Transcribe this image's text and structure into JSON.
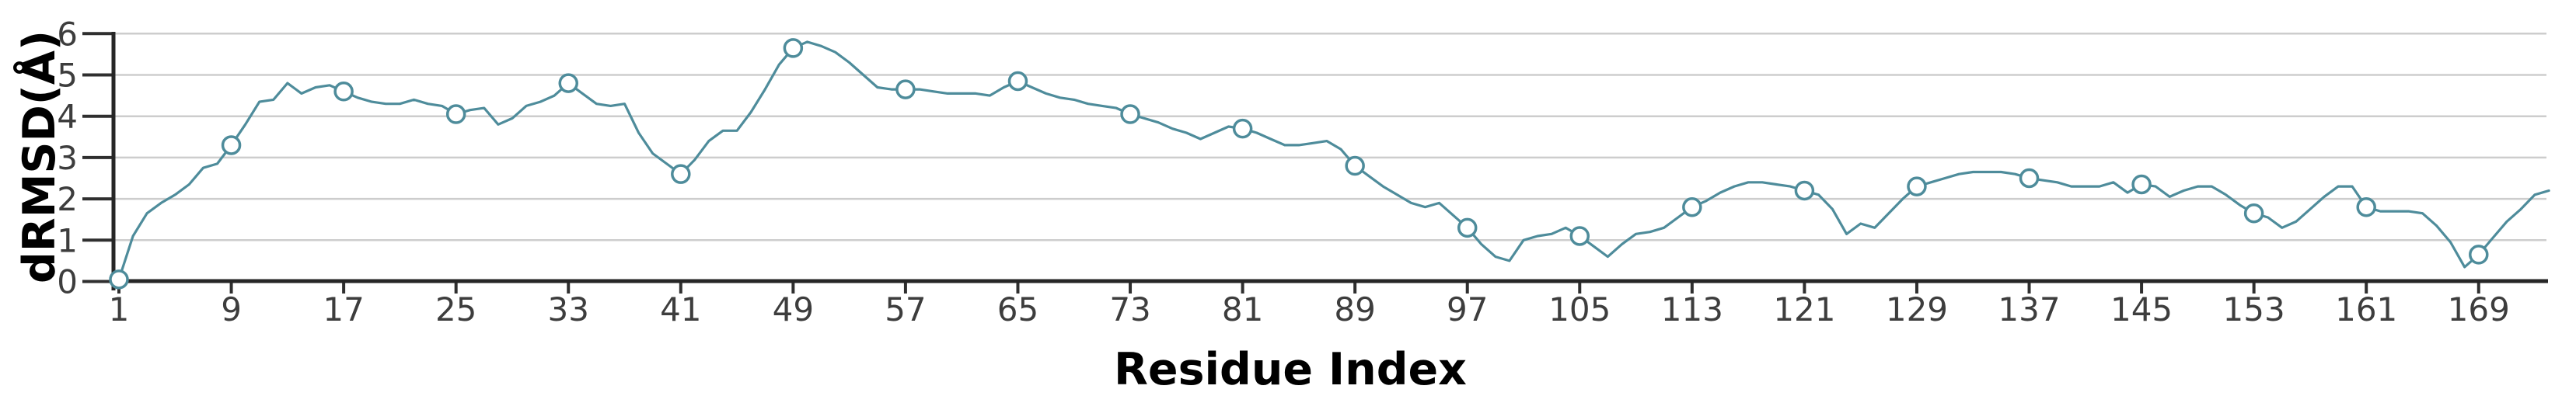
{
  "chart_data": {
    "type": "line",
    "title": "",
    "xlabel": "Residue Index",
    "ylabel": "dRMSD(Å)",
    "x_start": 1,
    "x_step": 1,
    "x_end": 174,
    "ylim": [
      0,
      6
    ],
    "yticks": [
      0,
      1,
      2,
      3,
      4,
      5,
      6
    ],
    "xticks": [
      1,
      9,
      17,
      25,
      33,
      41,
      49,
      57,
      65,
      73,
      81,
      89,
      97,
      105,
      113,
      121,
      129,
      137,
      145,
      153,
      161,
      169
    ],
    "marker_x": [
      1,
      9,
      17,
      25,
      33,
      41,
      49,
      57,
      65,
      73,
      81,
      89,
      97,
      105,
      113,
      121,
      129,
      137,
      145,
      153,
      161,
      169
    ],
    "grid": "horizontal",
    "legend": "none",
    "series": [
      {
        "name": "dRMSD",
        "values": [
          0.05,
          1.1,
          1.65,
          1.9,
          2.1,
          2.35,
          2.75,
          2.85,
          3.3,
          3.8,
          4.35,
          4.4,
          4.8,
          4.55,
          4.7,
          4.75,
          4.6,
          4.45,
          4.35,
          4.3,
          4.3,
          4.4,
          4.3,
          4.25,
          4.05,
          4.15,
          4.2,
          3.8,
          3.95,
          4.25,
          4.35,
          4.5,
          4.8,
          4.55,
          4.3,
          4.25,
          4.3,
          3.6,
          3.1,
          2.85,
          2.6,
          2.95,
          3.4,
          3.65,
          3.65,
          4.1,
          4.65,
          5.25,
          5.65,
          5.8,
          5.7,
          5.55,
          5.3,
          5.0,
          4.7,
          4.65,
          4.65,
          4.65,
          4.6,
          4.55,
          4.55,
          4.55,
          4.5,
          4.7,
          4.85,
          4.7,
          4.55,
          4.45,
          4.4,
          4.3,
          4.25,
          4.2,
          4.05,
          3.95,
          3.85,
          3.7,
          3.6,
          3.45,
          3.6,
          3.75,
          3.7,
          3.6,
          3.45,
          3.3,
          3.3,
          3.35,
          3.4,
          3.2,
          2.8,
          2.55,
          2.3,
          2.1,
          1.9,
          1.8,
          1.9,
          1.6,
          1.3,
          0.9,
          0.6,
          0.5,
          1.0,
          1.1,
          1.15,
          1.3,
          1.1,
          0.85,
          0.6,
          0.9,
          1.15,
          1.2,
          1.3,
          1.55,
          1.8,
          1.95,
          2.15,
          2.3,
          2.4,
          2.4,
          2.35,
          2.3,
          2.2,
          2.1,
          1.75,
          1.15,
          1.4,
          1.3,
          1.65,
          2.0,
          2.3,
          2.4,
          2.5,
          2.6,
          2.65,
          2.65,
          2.65,
          2.6,
          2.5,
          2.45,
          2.4,
          2.3,
          2.3,
          2.3,
          2.4,
          2.15,
          2.35,
          2.3,
          2.05,
          2.2,
          2.3,
          2.3,
          2.1,
          1.85,
          1.65,
          1.55,
          1.3,
          1.45,
          1.75,
          2.05,
          2.3,
          2.3,
          1.8,
          1.7,
          1.7,
          1.7,
          1.65,
          1.35,
          0.95,
          0.35,
          0.65,
          1.05,
          1.45,
          1.75,
          2.1,
          2.2
        ]
      }
    ],
    "colors": {
      "line": "#4e8c9b",
      "marker_stroke": "#4e8c9b",
      "marker_fill": "#ffffff",
      "grid": "#cdcdcd",
      "axis": "#262626",
      "tick": "#2f2f2f",
      "tick_label": "#3d3d3d",
      "title": "#000000",
      "background": "#ffffff"
    }
  }
}
